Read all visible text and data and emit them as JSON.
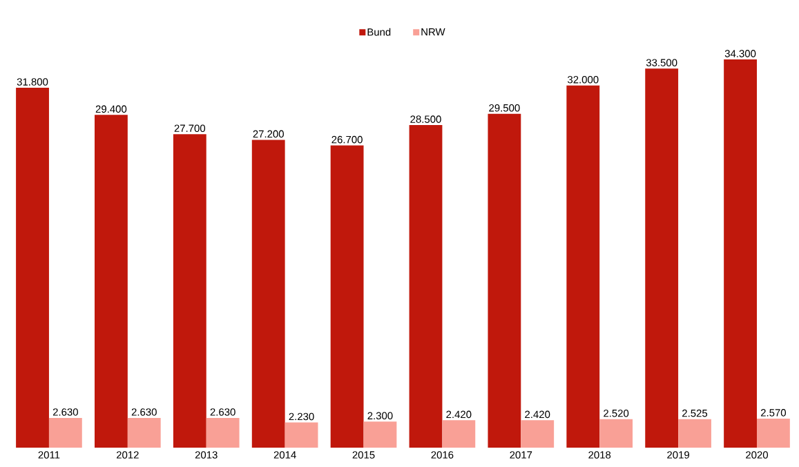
{
  "chart_data": {
    "type": "bar",
    "categories": [
      "2011",
      "2012",
      "2013",
      "2014",
      "2015",
      "2016",
      "2017",
      "2018",
      "2019",
      "2020"
    ],
    "series": [
      {
        "name": "Bund",
        "color": "#c0180c",
        "values": [
          31800,
          29400,
          27700,
          27200,
          26700,
          28500,
          29500,
          32000,
          33500,
          34300
        ],
        "value_labels": [
          "31.800",
          "29.400",
          "27.700",
          "27.200",
          "26.700",
          "28.500",
          "29.500",
          "32.000",
          "33.500",
          "34.300"
        ]
      },
      {
        "name": "NRW",
        "color": "#f9a096",
        "values": [
          2630,
          2630,
          2630,
          2230,
          2300,
          2420,
          2420,
          2520,
          2525,
          2570
        ],
        "value_labels": [
          "2.630",
          "2.630",
          "2.630",
          "2.230",
          "2.300",
          "2.420",
          "2.420",
          "2.520",
          "2.525",
          "2.570"
        ]
      }
    ],
    "legend": "top",
    "grid": false
  }
}
